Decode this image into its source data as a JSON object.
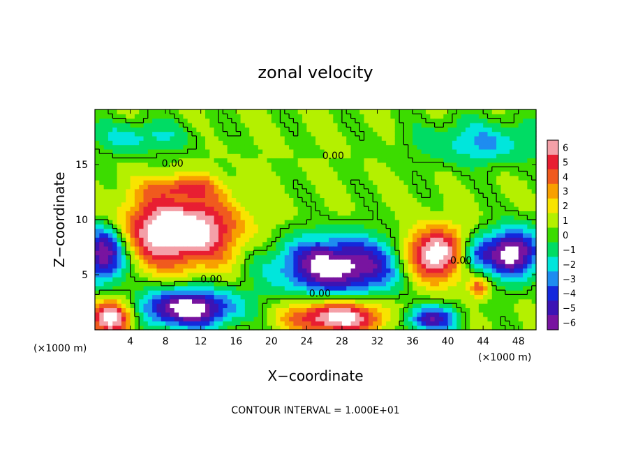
{
  "chart_data": {
    "type": "heatmap",
    "title": "zonal velocity",
    "xlabel": "X−coordinate",
    "ylabel": "Z−coordinate",
    "x_units_label": "(×1000 m)",
    "xlim": [
      0,
      50
    ],
    "ylim": [
      0,
      20
    ],
    "x_ticks": [
      4,
      8,
      12,
      16,
      20,
      24,
      28,
      32,
      36,
      40,
      44,
      48
    ],
    "y_ticks": [
      5,
      10,
      15
    ],
    "colorbar": {
      "ticks": [
        6,
        5,
        4,
        3,
        2,
        1,
        0,
        -1,
        -2,
        -3,
        -4,
        -5,
        -6
      ],
      "tick_labels": [
        "6",
        "5",
        "4",
        "3",
        "2",
        "1",
        "0",
        "−1",
        "−2",
        "−3",
        "−4",
        "−5",
        "−6"
      ],
      "colors": [
        "#f4a0a8",
        "#e81e32",
        "#f05a1e",
        "#f8a000",
        "#f8e400",
        "#b4f000",
        "#3cdc00",
        "#00dc64",
        "#00e6dc",
        "#1e8cf0",
        "#1428dc",
        "#3c14b4",
        "#7814a0"
      ]
    },
    "background_value": 0.5,
    "features": [
      {
        "kind": "positive",
        "x": 9.5,
        "z": 9.0,
        "rx": 6.5,
        "rz": 3.2,
        "amp": 8
      },
      {
        "kind": "positive",
        "x": 38.5,
        "z": 6.8,
        "rx": 3.2,
        "rz": 2.4,
        "amp": 8
      },
      {
        "kind": "positive",
        "x": 2.0,
        "z": 1.2,
        "rx": 2.5,
        "rz": 1.6,
        "amp": 7
      },
      {
        "kind": "positive",
        "x": 27.5,
        "z": 1.2,
        "rx": 5.5,
        "rz": 1.5,
        "amp": 7
      },
      {
        "kind": "positive",
        "x": 43.5,
        "z": 3.8,
        "rx": 1.0,
        "rz": 0.8,
        "amp": 4
      },
      {
        "kind": "positive",
        "x": 10.0,
        "z": 13.0,
        "rx": 4.0,
        "rz": 1.0,
        "amp": 3
      },
      {
        "kind": "negative",
        "x": 27.5,
        "z": 5.8,
        "rx": 7.0,
        "rz": 2.6,
        "amp": -8
      },
      {
        "kind": "negative",
        "x": 1.0,
        "z": 7.0,
        "rx": 2.5,
        "rz": 2.6,
        "amp": -8
      },
      {
        "kind": "negative",
        "x": 10.5,
        "z": 2.0,
        "rx": 5.5,
        "rz": 1.8,
        "amp": -8
      },
      {
        "kind": "negative",
        "x": 47.5,
        "z": 7.0,
        "rx": 3.0,
        "rz": 2.2,
        "amp": -8
      },
      {
        "kind": "negative",
        "x": 38.0,
        "z": 1.0,
        "rx": 3.0,
        "rz": 1.2,
        "amp": -6
      },
      {
        "kind": "negative",
        "x": 43.0,
        "z": 6.8,
        "rx": 2.0,
        "rz": 1.5,
        "amp": -4
      },
      {
        "kind": "negative",
        "x": 44.0,
        "z": 17.0,
        "rx": 7.0,
        "rz": 2.0,
        "amp": -3
      },
      {
        "kind": "negative",
        "x": 5.0,
        "z": 17.5,
        "rx": 5.5,
        "rz": 1.5,
        "amp": -2.5
      }
    ],
    "contour_labels": [
      {
        "text": "0.00",
        "x": 8.8,
        "z": 14.8
      },
      {
        "text": "0.00",
        "x": 27.0,
        "z": 15.5
      },
      {
        "text": "0.00",
        "x": 13.2,
        "z": 4.3
      },
      {
        "text": "0.00",
        "x": 25.5,
        "z": 3.0
      },
      {
        "text": "0.00",
        "x": 41.5,
        "z": 6.0
      }
    ],
    "footer": "CONTOUR INTERVAL = 1.000E+01"
  }
}
